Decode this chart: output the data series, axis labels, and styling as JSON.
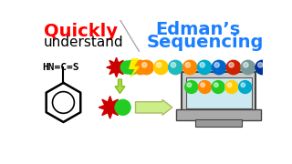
{
  "bg_color": "#ffffff",
  "title_quickly": "Quickly",
  "title_understand": "understand",
  "title_edmans": "Edman’s",
  "title_sequencing": "Sequencing",
  "quickly_color": "#ff0000",
  "edmans_color": "#1a7fff",
  "text_color": "#000000",
  "chain_colors": [
    "#00bb00",
    "#ffaa00",
    "#ffcc00",
    "#00aacc",
    "#ff8800",
    "#00aacc",
    "#0066cc",
    "#cc0000",
    "#888888",
    "#0044cc"
  ],
  "star_color": "#cc0000",
  "green_bead_color": "#22cc22",
  "lightning_color": "#ffee00",
  "screen_bead_colors": [
    "#22cc22",
    "#ff8800",
    "#22cc22",
    "#ffcc00",
    "#00aacc"
  ]
}
